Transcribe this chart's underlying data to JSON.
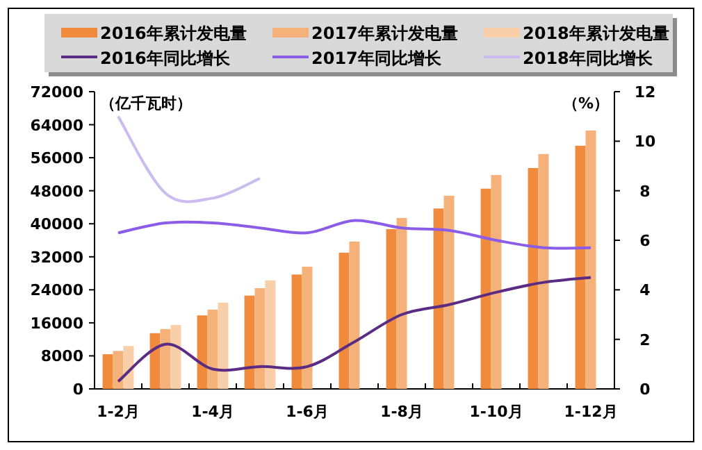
{
  "chart_data": {
    "type": "bar",
    "ylabel": "（亿千瓦时）",
    "y2label": "（%）",
    "categories": [
      "1-2月",
      null,
      "1-4月",
      null,
      "1-6月",
      null,
      "1-8月",
      null,
      "1-10月",
      null,
      "1-12月"
    ],
    "ylim": [
      0,
      72000
    ],
    "yticks": [
      0,
      8000,
      16000,
      24000,
      32000,
      40000,
      48000,
      56000,
      64000,
      72000
    ],
    "y2lim": [
      0,
      12
    ],
    "y2ticks": [
      0,
      2,
      4,
      6,
      8,
      10,
      12
    ],
    "legend": "top",
    "series": [
      {
        "name": "2016年累计发电量",
        "color": "#f08a3c",
        "values": [
          8400,
          13500,
          17800,
          22600,
          27700,
          33000,
          38700,
          43700,
          48500,
          53500,
          58900
        ]
      },
      {
        "name": "2017年累计发电量",
        "color": "#f5b17a",
        "values": [
          9200,
          14500,
          19200,
          24400,
          29600,
          35700,
          41400,
          46800,
          51800,
          56900,
          62600
        ]
      },
      {
        "name": "2018年累计发电量",
        "color": "#f9cfaa",
        "values": [
          10400,
          15500,
          20900,
          26300,
          null,
          null,
          null,
          null,
          null,
          null,
          null
        ]
      },
      {
        "name": "2016年同比增长",
        "type": "line",
        "axis": "y2",
        "color": "#5b2c83",
        "values": [
          0.3,
          1.8,
          0.8,
          0.9,
          0.9,
          1.9,
          3.0,
          3.4,
          3.9,
          4.3,
          4.5
        ]
      },
      {
        "name": "2017年同比增长",
        "type": "line",
        "axis": "y2",
        "color": "#8a5ce8",
        "values": [
          6.3,
          6.7,
          6.7,
          6.5,
          6.3,
          6.8,
          6.5,
          6.4,
          6.0,
          5.7,
          5.7
        ]
      },
      {
        "name": "2018年同比增长",
        "type": "line",
        "axis": "y2",
        "color": "#cbbbee",
        "values": [
          11.0,
          7.9,
          7.7,
          8.5,
          null,
          null,
          null,
          null,
          null,
          null,
          null
        ]
      }
    ]
  }
}
